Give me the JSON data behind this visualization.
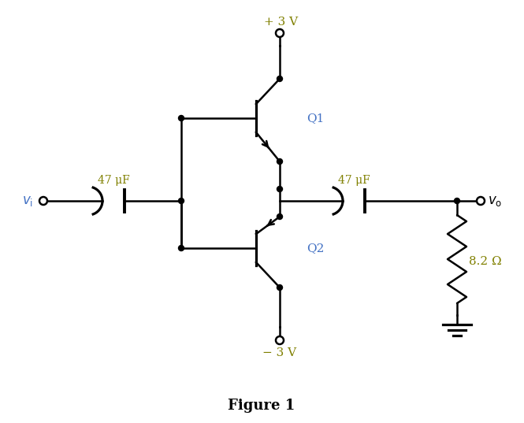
{
  "title": "Figure 1",
  "title_color": "#000000",
  "title_fontsize": 13,
  "background_color": "#ffffff",
  "line_color": "#000000",
  "label_color_blue": "#4472c4",
  "label_color_olive": "#808000",
  "vcc_label": "+ 3 V",
  "vee_label": "− 3 V",
  "cap1_label": "47 μF",
  "cap2_label": "47 μF",
  "res_label": "8.2 Ω",
  "q1_label": "Q1",
  "q2_label": "Q2",
  "figsize": [
    6.65,
    5.37
  ],
  "dpi": 100
}
